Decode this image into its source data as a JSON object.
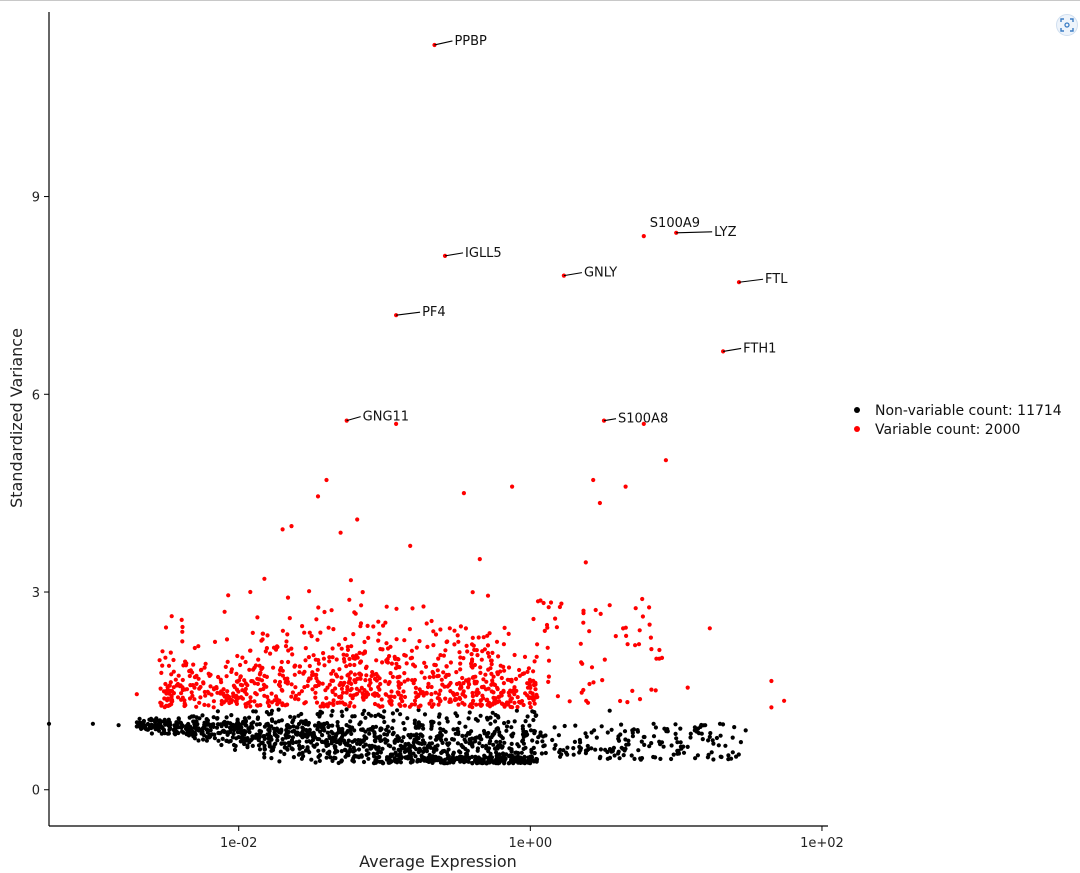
{
  "chart_data": {
    "type": "scatter",
    "xlabel": "Average Expression",
    "ylabel": "Standardized Variance",
    "x_scale": "log10",
    "xlim": [
      0.0005,
      110
    ],
    "ylim": [
      -0.55,
      11.8
    ],
    "x_ticks": [
      {
        "value": 0.01,
        "label": "1e-02"
      },
      {
        "value": 1,
        "label": "1e+00"
      },
      {
        "value": 100,
        "label": "1e+02"
      }
    ],
    "y_ticks": [
      {
        "value": 0,
        "label": "0"
      },
      {
        "value": 3,
        "label": "3"
      },
      {
        "value": 6,
        "label": "6"
      },
      {
        "value": 9,
        "label": "9"
      }
    ],
    "grid": false,
    "legend_position": "right",
    "series": [
      {
        "name": "Non-variable count: 11714",
        "color": "#000000",
        "points": [
          [
            0.0005,
            1.0
          ],
          [
            0.001,
            1.0
          ],
          [
            0.0015,
            0.98
          ],
          [
            0.002,
            0.96
          ],
          [
            0.0025,
            0.95
          ],
          [
            0.003,
            0.94
          ],
          [
            0.9,
            0.62
          ],
          [
            1.2,
            0.55
          ],
          [
            1.6,
            0.5
          ],
          [
            2.2,
            0.6
          ],
          [
            3.0,
            0.48
          ],
          [
            4.0,
            0.55
          ],
          [
            5.0,
            0.9
          ],
          [
            6.0,
            0.8
          ],
          [
            8.0,
            0.72
          ],
          [
            10.0,
            0.78
          ],
          [
            12.0,
            0.65
          ],
          [
            15.0,
            0.85
          ],
          [
            20.0,
            1.0
          ],
          [
            25.0,
            0.95
          ],
          [
            30.0,
            0.9
          ],
          [
            3.5,
            1.2
          ],
          [
            5.5,
            0.6
          ],
          [
            7.0,
            1.0
          ],
          [
            18.0,
            0.7
          ]
        ]
      },
      {
        "name": "Variable count: 2000",
        "color": "#ff0000",
        "points": [
          [
            0.22,
            11.3
          ],
          [
            0.26,
            8.1
          ],
          [
            0.12,
            7.2
          ],
          [
            1.7,
            7.8
          ],
          [
            6.0,
            8.4
          ],
          [
            10.0,
            8.45
          ],
          [
            27.0,
            7.7
          ],
          [
            21.0,
            6.65
          ],
          [
            0.055,
            5.6
          ],
          [
            0.12,
            5.55
          ],
          [
            3.2,
            5.6
          ],
          [
            6.0,
            5.55
          ],
          [
            8.5,
            5.0
          ],
          [
            0.04,
            4.7
          ],
          [
            0.035,
            4.45
          ],
          [
            0.02,
            3.95
          ],
          [
            0.023,
            4.0
          ],
          [
            0.05,
            3.9
          ],
          [
            0.065,
            4.1
          ],
          [
            0.35,
            4.5
          ],
          [
            0.75,
            4.6
          ],
          [
            2.7,
            4.7
          ],
          [
            3.0,
            4.35
          ],
          [
            4.5,
            4.6
          ],
          [
            0.15,
            3.7
          ],
          [
            0.45,
            3.5
          ],
          [
            2.4,
            3.45
          ],
          [
            17.0,
            2.45
          ],
          [
            45.0,
            1.65
          ],
          [
            55.0,
            1.35
          ],
          [
            45.0,
            1.25
          ],
          [
            0.003,
            2.1
          ],
          [
            0.005,
            2.15
          ],
          [
            0.008,
            2.7
          ],
          [
            1.3,
            2.5
          ],
          [
            3.5,
            2.8
          ],
          [
            8.0,
            2.0
          ],
          [
            12.0,
            1.55
          ],
          [
            5.0,
            1.5
          ],
          [
            0.012,
            3.0
          ],
          [
            0.015,
            3.2
          ],
          [
            0.002,
            1.45
          ]
        ]
      }
    ],
    "labeled_points": [
      {
        "gene": "PPBP",
        "x": 0.22,
        "y": 11.3
      },
      {
        "gene": "S100A9",
        "x": 6.0,
        "y": 8.4
      },
      {
        "gene": "LYZ",
        "x": 10.0,
        "y": 8.45
      },
      {
        "gene": "IGLL5",
        "x": 0.26,
        "y": 8.1
      },
      {
        "gene": "GNLY",
        "x": 1.7,
        "y": 7.8
      },
      {
        "gene": "FTL",
        "x": 27.0,
        "y": 7.7
      },
      {
        "gene": "PF4",
        "x": 0.12,
        "y": 7.2
      },
      {
        "gene": "FTH1",
        "x": 21.0,
        "y": 6.65
      },
      {
        "gene": "GNG11",
        "x": 0.055,
        "y": 5.6
      },
      {
        "gene": "S100A8",
        "x": 3.2,
        "y": 5.6
      }
    ]
  },
  "legend": {
    "items": [
      {
        "label": "Non-variable count: 11714",
        "color": "#000000"
      },
      {
        "label": "Variable count: 2000",
        "color": "#ff0000"
      }
    ]
  },
  "toolbar": {
    "corner_icon": "screenshot-icon"
  }
}
